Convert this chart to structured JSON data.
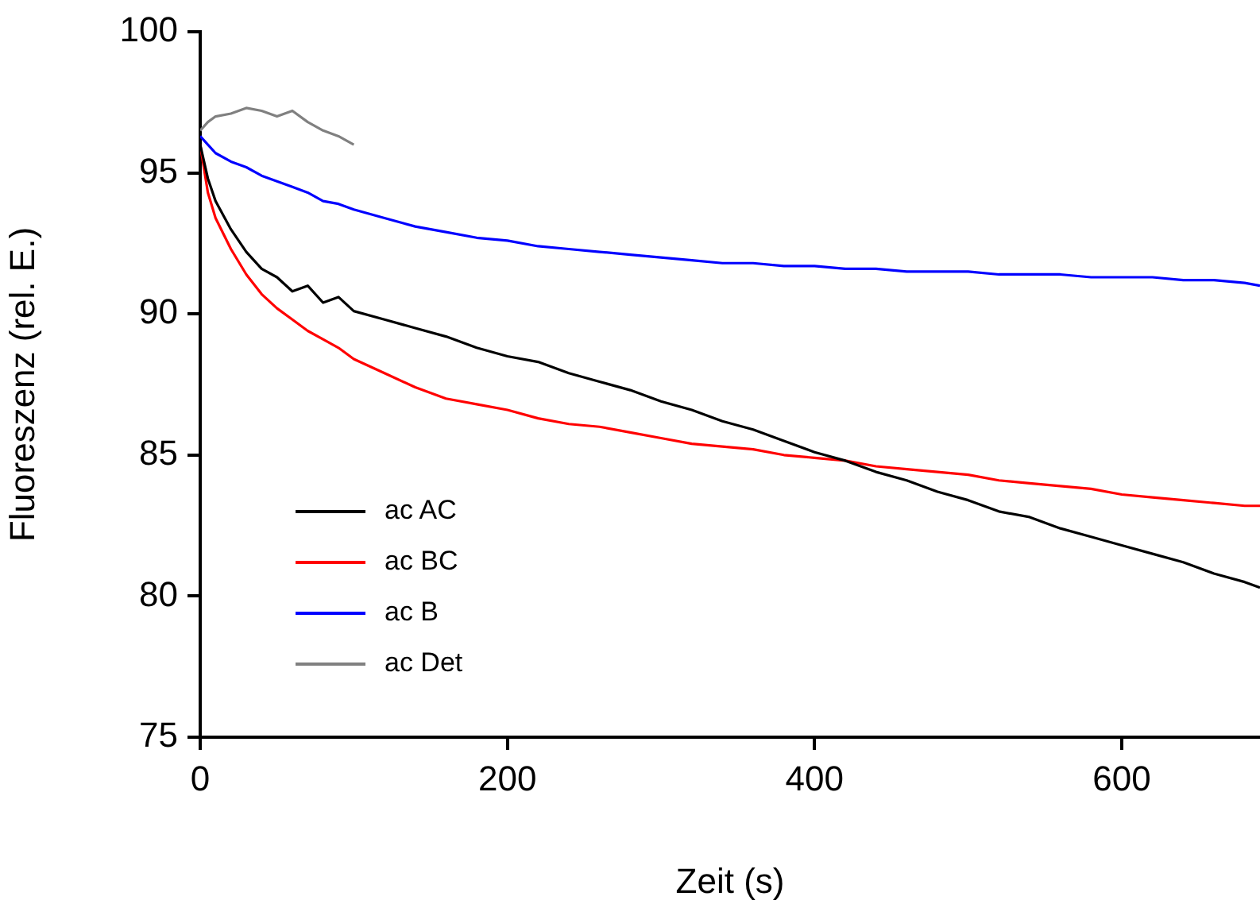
{
  "chart_data": {
    "type": "line",
    "xlabel": "Zeit (s)",
    "ylabel": "Fluoreszenz (rel. E.)",
    "xlim": [
      0,
      690
    ],
    "ylim": [
      75,
      100
    ],
    "xticks": [
      0,
      200,
      400,
      600
    ],
    "yticks": [
      75,
      80,
      85,
      90,
      95,
      100
    ],
    "grid": false,
    "legend": "bottom left",
    "marker": "none",
    "line_style": "solid",
    "x": [
      0,
      5,
      10,
      20,
      30,
      40,
      50,
      60,
      70,
      80,
      90,
      100,
      120,
      140,
      160,
      180,
      200,
      220,
      240,
      260,
      280,
      300,
      320,
      340,
      360,
      380,
      400,
      420,
      440,
      460,
      480,
      500,
      520,
      540,
      560,
      580,
      600,
      620,
      640,
      660,
      680,
      690
    ],
    "series": [
      {
        "name": "ac AC",
        "color": "#000000",
        "values": [
          96,
          94.8,
          94,
          93,
          92.2,
          91.6,
          91.3,
          90.8,
          91,
          90.4,
          90.6,
          90.1,
          89.8,
          89.5,
          89.2,
          88.8,
          88.5,
          88.3,
          87.9,
          87.6,
          87.3,
          86.9,
          86.6,
          86.2,
          85.9,
          85.5,
          85.1,
          84.8,
          84.4,
          84.1,
          83.7,
          83.4,
          83,
          82.8,
          82.4,
          82.1,
          81.8,
          81.5,
          81.2,
          80.8,
          80.5,
          80.3
        ]
      },
      {
        "name": "ac BC",
        "color": "#ff0000",
        "values": [
          96,
          94.3,
          93.4,
          92.3,
          91.4,
          90.7,
          90.2,
          89.8,
          89.4,
          89.1,
          88.8,
          88.4,
          87.9,
          87.4,
          87,
          86.8,
          86.6,
          86.3,
          86.1,
          86,
          85.8,
          85.6,
          85.4,
          85.3,
          85.2,
          85,
          84.9,
          84.8,
          84.6,
          84.5,
          84.4,
          84.3,
          84.1,
          84,
          83.9,
          83.8,
          83.6,
          83.5,
          83.4,
          83.3,
          83.2,
          83.2
        ]
      },
      {
        "name": "ac B",
        "color": "#0000ff",
        "values": [
          96.3,
          96,
          95.7,
          95.4,
          95.2,
          94.9,
          94.7,
          94.5,
          94.3,
          94,
          93.9,
          93.7,
          93.4,
          93.1,
          92.9,
          92.7,
          92.6,
          92.4,
          92.3,
          92.2,
          92.1,
          92,
          91.9,
          91.8,
          91.8,
          91.7,
          91.7,
          91.6,
          91.6,
          91.5,
          91.5,
          91.5,
          91.4,
          91.4,
          91.4,
          91.3,
          91.3,
          91.3,
          91.2,
          91.2,
          91.1,
          91
        ]
      },
      {
        "name": "ac Det",
        "color": "#808080",
        "x": [
          0,
          5,
          10,
          20,
          30,
          40,
          50,
          60,
          70,
          80,
          90,
          100
        ],
        "values": [
          96.5,
          96.8,
          97,
          97.1,
          97.3,
          97.2,
          97,
          97.2,
          96.8,
          96.5,
          96.3,
          96
        ]
      }
    ]
  }
}
